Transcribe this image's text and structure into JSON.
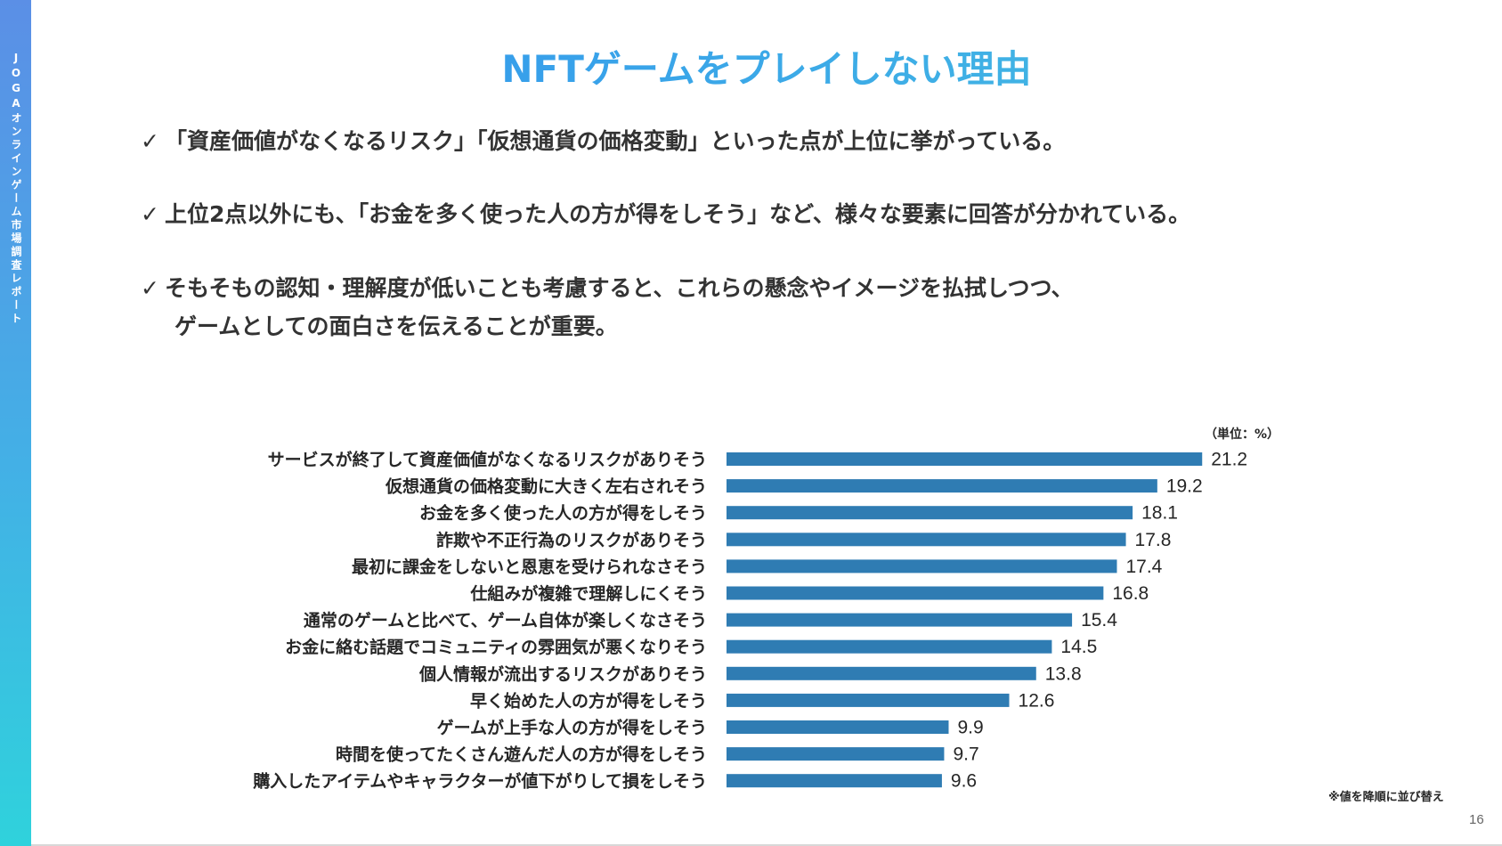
{
  "sidebar": {
    "text": "JOGAオンラインゲーム市場調査レポート"
  },
  "title": "NFTゲームをプレイしない理由",
  "bullets": [
    {
      "check": "✓",
      "line1": "「資産価値がなくなるリスク」「仮想通貨の価格変動」といった点が上位に挙がっている。",
      "line2": ""
    },
    {
      "check": "✓",
      "line1": "上位2点以外にも、「お金を多く使った人の方が得をしそう」など、様々な要素に回答が分かれている。",
      "line2": ""
    },
    {
      "check": "✓",
      "line1": "そもそもの認知・理解度が低いことも考慮すると、これらの懸念やイメージを払拭しつつ、",
      "line2": "ゲームとしての面白さを伝えることが重要。"
    }
  ],
  "chart_data": {
    "type": "bar",
    "orientation": "horizontal",
    "unit_label": "（単位：%）",
    "categories": [
      "サービスが終了して資産価値がなくなるリスクがありそう",
      "仮想通貨の価格変動に大きく左右されそう",
      "お金を多く使った人の方が得をしそう",
      "詐欺や不正行為のリスクがありそう",
      "最初に課金をしないと恩恵を受けられなさそう",
      "仕組みが複雑で理解しにくそう",
      "通常のゲームと比べて、ゲーム自体が楽しくなさそう",
      "お金に絡む話題でコミュニティの雰囲気が悪くなりそう",
      "個人情報が流出するリスクがありそう",
      "早く始めた人の方が得をしそう",
      "ゲームが上手な人の方が得をしそう",
      "時間を使ってたくさん遊んだ人の方が得をしそう",
      "購入したアイテムやキャラクターが値下がりして損をしそう"
    ],
    "values": [
      21.2,
      19.2,
      18.1,
      17.8,
      17.4,
      16.8,
      15.4,
      14.5,
      13.8,
      12.6,
      9.9,
      9.7,
      9.6
    ],
    "value_labels": [
      "21.2",
      "19.2",
      "18.1",
      "17.8",
      "17.4",
      "16.8",
      "15.4",
      "14.5",
      "13.8",
      "12.6",
      "9.9",
      "9.7",
      "9.6"
    ],
    "bar_color": "#2f7cb3",
    "grid": false,
    "note": "※値を降順に並び替え"
  },
  "page_number": "16"
}
